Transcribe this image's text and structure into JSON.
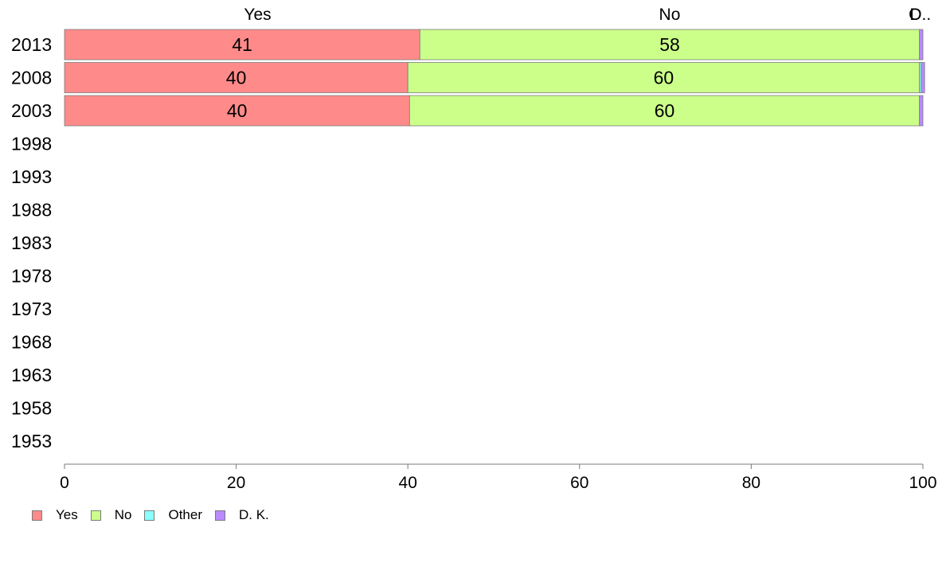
{
  "chart_data": {
    "type": "bar",
    "orientation": "horizontal",
    "stacked": true,
    "categories": [
      "2013",
      "2008",
      "2003",
      "1998",
      "1993",
      "1988",
      "1983",
      "1978",
      "1973",
      "1968",
      "1963",
      "1958",
      "1953"
    ],
    "series": [
      {
        "name": "Yes",
        "color": "#ff8a8a",
        "values": [
          41.4,
          40.0,
          40.2,
          null,
          null,
          null,
          null,
          null,
          null,
          null,
          null,
          null,
          null
        ]
      },
      {
        "name": "No",
        "color": "#ccff8a",
        "values": [
          58.2,
          59.6,
          59.4,
          null,
          null,
          null,
          null,
          null,
          null,
          null,
          null,
          null,
          null
        ]
      },
      {
        "name": "Other",
        "color": "#8affff",
        "values": [
          0.0,
          0.2,
          0.0,
          null,
          null,
          null,
          null,
          null,
          null,
          null,
          null,
          null,
          null
        ]
      },
      {
        "name": "D. K.",
        "color": "#bb8aff",
        "values": [
          0.4,
          0.4,
          0.4,
          null,
          null,
          null,
          null,
          null,
          null,
          null,
          null,
          null,
          null
        ]
      }
    ],
    "data_labels": [
      [
        "41",
        "58",
        "",
        ""
      ],
      [
        "40",
        "60",
        "",
        ""
      ],
      [
        "40",
        "60",
        "",
        ""
      ]
    ],
    "top_labels": [
      {
        "text": "Yes",
        "at": 22.5
      },
      {
        "text": "No",
        "at": 70.5
      },
      {
        "text": "O",
        "at": 99.1
      },
      {
        "text": "D..",
        "at": 99.7
      }
    ],
    "xlim": [
      0,
      100
    ],
    "xticks": [
      "0",
      "20",
      "40",
      "60",
      "80",
      "100"
    ],
    "title": "",
    "xlabel": "",
    "ylabel": "",
    "grid": false,
    "legend_position": "bottom-left",
    "axis_color": "#7a7a7a"
  },
  "legend": {
    "items": [
      {
        "label": "Yes",
        "color": "#ff8a8a"
      },
      {
        "label": "No",
        "color": "#ccff8a"
      },
      {
        "label": "Other",
        "color": "#8affff"
      },
      {
        "label": "D. K.",
        "color": "#bb8aff"
      }
    ]
  }
}
